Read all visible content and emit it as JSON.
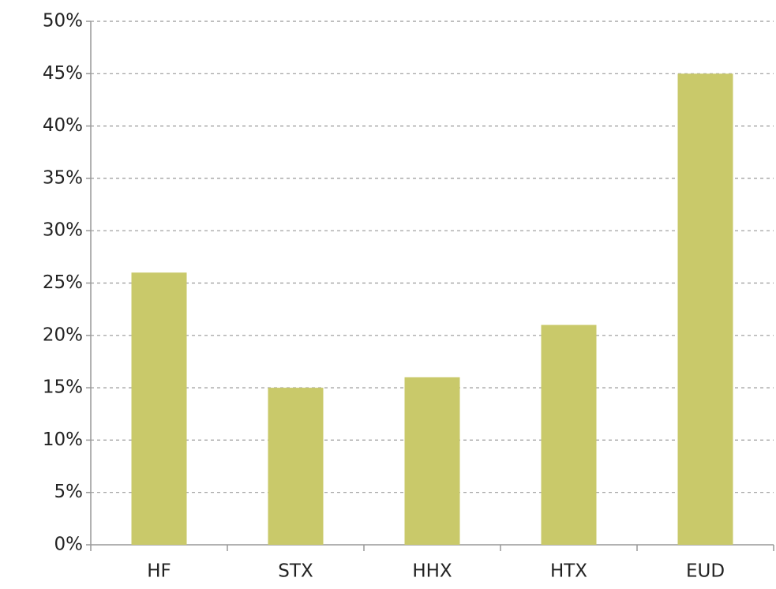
{
  "chart_data": {
    "type": "bar",
    "categories": [
      "HF",
      "STX",
      "HHX",
      "HTX",
      "EUD"
    ],
    "values": [
      26,
      15,
      16,
      21,
      45
    ],
    "color": "#c9c96a",
    "ylim": [
      0,
      50
    ],
    "yticks": [
      {
        "value": 0,
        "label": "0%"
      },
      {
        "value": 5,
        "label": "5%"
      },
      {
        "value": 10,
        "label": "10%"
      },
      {
        "value": 15,
        "label": "15%"
      },
      {
        "value": 20,
        "label": "20%"
      },
      {
        "value": 25,
        "label": "25%"
      },
      {
        "value": 30,
        "label": "30%"
      },
      {
        "value": 35,
        "label": "35%"
      },
      {
        "value": 40,
        "label": "40%"
      },
      {
        "value": 45,
        "label": "45%"
      },
      {
        "value": 50,
        "label": "50%"
      }
    ],
    "grid": true
  }
}
